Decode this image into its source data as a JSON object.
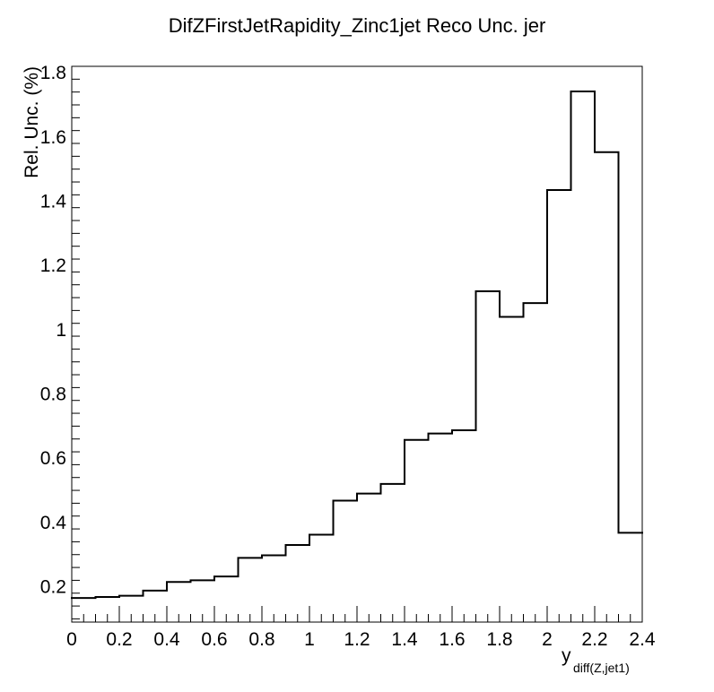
{
  "chart_data": {
    "type": "histogram",
    "title": "DifZFirstJetRapidity_Zinc1jet Reco Unc. jer",
    "xlabel": "y",
    "xlabel_subscript": "diff(Z,jet1)",
    "ylabel": "Rel. Unc. (%)",
    "xlim": [
      0,
      2.4
    ],
    "ylim": [
      0.09,
      1.82
    ],
    "x_ticks": [
      0,
      0.2,
      0.4,
      0.6,
      0.8,
      1,
      1.2,
      1.4,
      1.6,
      1.8,
      2,
      2.2,
      2.4
    ],
    "x_tick_labels": [
      "0",
      "0.2",
      "0.4",
      "0.6",
      "0.8",
      "1",
      "1.2",
      "1.4",
      "1.6",
      "1.8",
      "2",
      "2.2",
      "2.4"
    ],
    "y_ticks": [
      0.2,
      0.4,
      0.6,
      0.8,
      1.0,
      1.2,
      1.4,
      1.6,
      1.8
    ],
    "y_tick_labels": [
      "0.2",
      "0.4",
      "0.6",
      "0.8",
      "1",
      "1.2",
      "1.4",
      "1.6",
      "1.8"
    ],
    "grid": false,
    "bin_edges": [
      0,
      0.1,
      0.2,
      0.3,
      0.4,
      0.5,
      0.6,
      0.7,
      0.8,
      0.9,
      1.0,
      1.1,
      1.2,
      1.3,
      1.4,
      1.5,
      1.6,
      1.7,
      1.8,
      1.9,
      2.0,
      2.1,
      2.2,
      2.3,
      2.4
    ],
    "values": [
      0.165,
      0.168,
      0.172,
      0.188,
      0.215,
      0.22,
      0.232,
      0.29,
      0.298,
      0.33,
      0.362,
      0.468,
      0.49,
      0.52,
      0.657,
      0.677,
      0.687,
      1.12,
      1.04,
      1.083,
      1.435,
      1.742,
      1.553,
      0.368
    ],
    "line_color": "#000000"
  }
}
